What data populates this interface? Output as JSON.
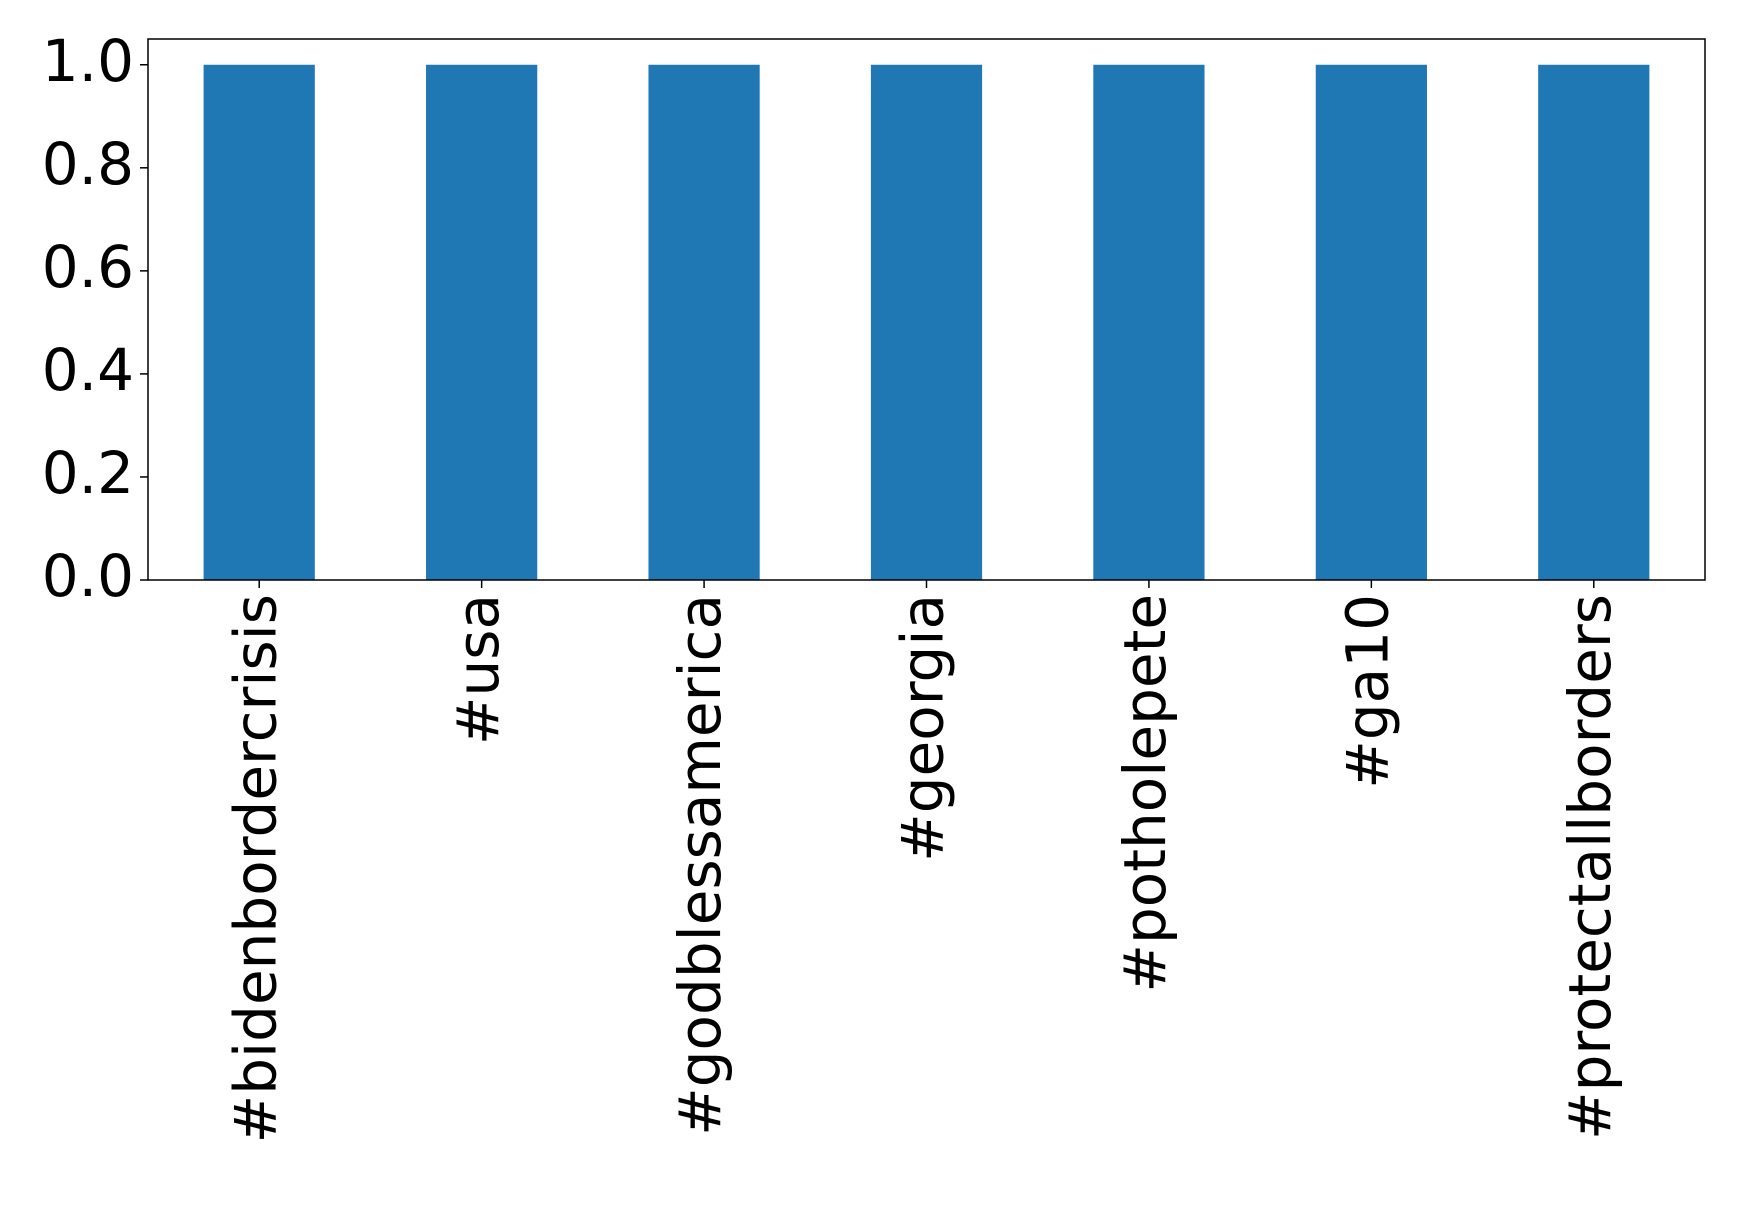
{
  "chart_data": {
    "type": "bar",
    "categories": [
      "#bidenbordercrisis",
      "#usa",
      "#godblessamerica",
      "#georgia",
      "#potholepete",
      "#ga10",
      "#protectallborders"
    ],
    "values": [
      1,
      1,
      1,
      1,
      1,
      1,
      1
    ],
    "color": "#1f77b4",
    "ylim": [
      0,
      1.05
    ],
    "yticks": [
      {
        "value": 0,
        "label": "0.0"
      },
      {
        "value": 0.2,
        "label": "0.2"
      },
      {
        "value": 0.4,
        "label": "0.4"
      },
      {
        "value": 0.6,
        "label": "0.6"
      },
      {
        "value": 0.8,
        "label": "0.8"
      },
      {
        "value": 1,
        "label": "1.0"
      }
    ],
    "grid": false
  }
}
